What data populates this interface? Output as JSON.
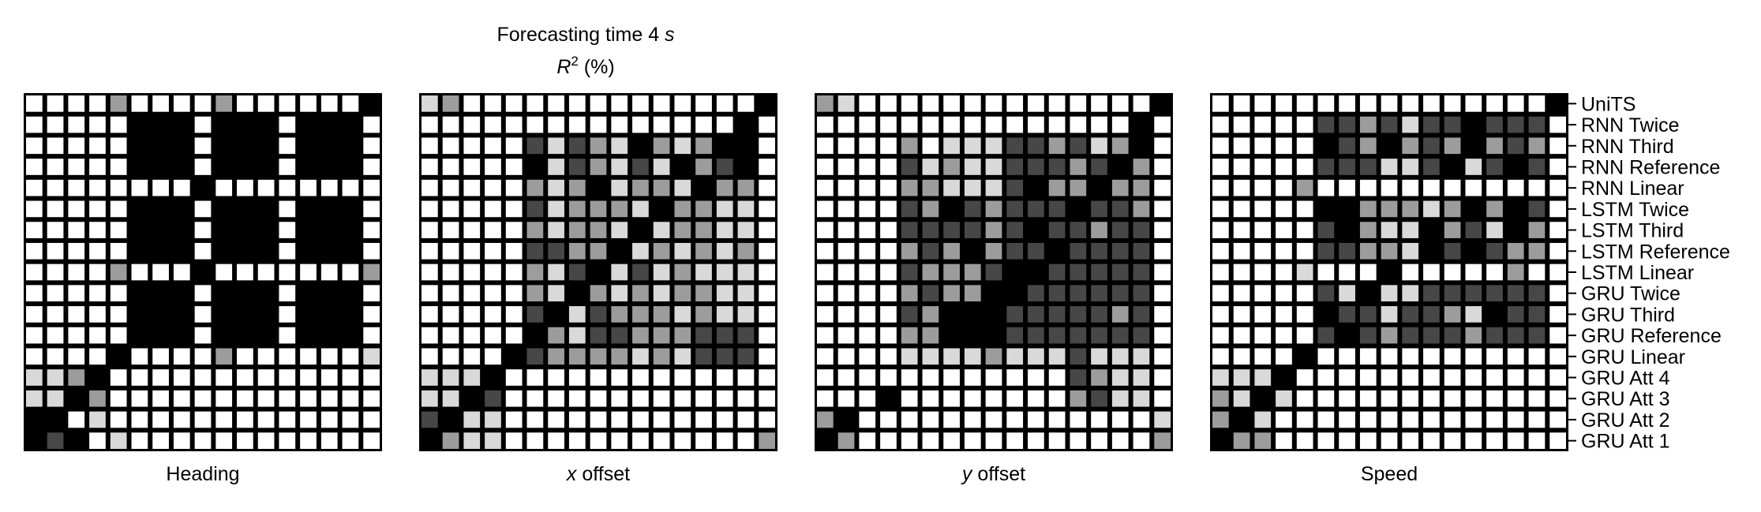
{
  "figure": {
    "title_line1_prefix": "Forecasting time 4 ",
    "title_line1_var": "s",
    "title_line2_var": "R",
    "title_line2_sup": "2",
    "title_line2_suffix": " (%)"
  },
  "row_labels": [
    "UniTS",
    "RNN Twice",
    "RNN Third",
    "RNN Reference",
    "RNN Linear",
    "LSTM Twice",
    "LSTM Third",
    "LSTM Reference",
    "LSTM Linear",
    "GRU Twice",
    "GRU Third",
    "GRU Reference",
    "GRU Linear",
    "GRU Att 4",
    "GRU Att 3",
    "GRU Att 2",
    "GRU Att 1"
  ],
  "chart_data": [
    {
      "type": "heatmap",
      "xlabel_prefix": "",
      "xlabel_var": "",
      "xlabel_suffix": "Heading",
      "note": "17x17 pairwise matrix, rows top-to-bottom and columns left-to-right in row_labels order; values are darkness level 0 (white) to 4 (black)",
      "matrix": [
        [
          0,
          0,
          0,
          0,
          2,
          0,
          0,
          0,
          0,
          2,
          0,
          0,
          0,
          0,
          0,
          0,
          4
        ],
        [
          0,
          0,
          0,
          0,
          0,
          4,
          4,
          4,
          0,
          4,
          4,
          4,
          0,
          4,
          4,
          4,
          0
        ],
        [
          0,
          0,
          0,
          0,
          0,
          4,
          4,
          4,
          0,
          4,
          4,
          4,
          0,
          4,
          4,
          4,
          0
        ],
        [
          0,
          0,
          0,
          0,
          0,
          4,
          4,
          4,
          0,
          4,
          4,
          4,
          0,
          4,
          4,
          4,
          0
        ],
        [
          0,
          0,
          0,
          0,
          0,
          0,
          0,
          0,
          4,
          0,
          0,
          0,
          0,
          0,
          0,
          0,
          0
        ],
        [
          0,
          0,
          0,
          0,
          0,
          4,
          4,
          4,
          0,
          4,
          4,
          4,
          0,
          4,
          4,
          4,
          0
        ],
        [
          0,
          0,
          0,
          0,
          0,
          4,
          4,
          4,
          0,
          4,
          4,
          4,
          0,
          4,
          4,
          4,
          0
        ],
        [
          0,
          0,
          0,
          0,
          0,
          4,
          4,
          4,
          0,
          4,
          4,
          4,
          0,
          4,
          4,
          4,
          0
        ],
        [
          0,
          0,
          0,
          0,
          2,
          0,
          0,
          0,
          4,
          0,
          0,
          0,
          0,
          0,
          0,
          0,
          2
        ],
        [
          0,
          0,
          0,
          0,
          0,
          4,
          4,
          4,
          0,
          4,
          4,
          4,
          0,
          4,
          4,
          4,
          0
        ],
        [
          0,
          0,
          0,
          0,
          0,
          4,
          4,
          4,
          0,
          4,
          4,
          4,
          0,
          4,
          4,
          4,
          0
        ],
        [
          0,
          0,
          0,
          0,
          0,
          4,
          4,
          4,
          0,
          4,
          4,
          4,
          0,
          4,
          4,
          4,
          0
        ],
        [
          0,
          0,
          0,
          0,
          4,
          0,
          0,
          0,
          0,
          2,
          0,
          0,
          0,
          0,
          0,
          0,
          1
        ],
        [
          1,
          1,
          2,
          4,
          0,
          0,
          0,
          0,
          0,
          0,
          0,
          0,
          0,
          0,
          0,
          0,
          0
        ],
        [
          1,
          1,
          4,
          2,
          0,
          0,
          0,
          0,
          0,
          0,
          0,
          0,
          0,
          0,
          0,
          0,
          0
        ],
        [
          4,
          4,
          0,
          1,
          0,
          0,
          0,
          0,
          0,
          0,
          0,
          0,
          0,
          0,
          0,
          0,
          0
        ],
        [
          4,
          3,
          4,
          0,
          1,
          0,
          0,
          0,
          0,
          0,
          0,
          0,
          0,
          0,
          0,
          0,
          0
        ]
      ]
    },
    {
      "type": "heatmap",
      "xlabel_prefix": "",
      "xlabel_var": "x",
      "xlabel_suffix": " offset",
      "matrix": [
        [
          1,
          2,
          0,
          0,
          0,
          0,
          0,
          0,
          0,
          0,
          0,
          0,
          0,
          0,
          0,
          0,
          4
        ],
        [
          0,
          0,
          0,
          0,
          0,
          0,
          0,
          0,
          0,
          0,
          0,
          0,
          0,
          0,
          0,
          4,
          0
        ],
        [
          0,
          0,
          0,
          0,
          0,
          3,
          1,
          3,
          2,
          1,
          4,
          2,
          1,
          2,
          4,
          4,
          0
        ],
        [
          0,
          0,
          0,
          0,
          0,
          4,
          1,
          3,
          2,
          1,
          3,
          1,
          4,
          2,
          3,
          4,
          0
        ],
        [
          0,
          0,
          0,
          0,
          0,
          2,
          1,
          2,
          4,
          1,
          2,
          2,
          1,
          4,
          2,
          2,
          0
        ],
        [
          0,
          0,
          0,
          0,
          0,
          3,
          1,
          2,
          2,
          2,
          1,
          4,
          2,
          2,
          1,
          1,
          0
        ],
        [
          0,
          0,
          0,
          0,
          0,
          2,
          1,
          2,
          2,
          1,
          4,
          1,
          2,
          2,
          1,
          1,
          0
        ],
        [
          0,
          0,
          0,
          0,
          0,
          3,
          3,
          2,
          2,
          4,
          1,
          2,
          1,
          2,
          1,
          2,
          0
        ],
        [
          0,
          0,
          0,
          0,
          0,
          2,
          1,
          3,
          4,
          1,
          3,
          1,
          2,
          1,
          1,
          1,
          0
        ],
        [
          0,
          0,
          0,
          0,
          0,
          2,
          1,
          4,
          2,
          1,
          2,
          1,
          2,
          2,
          1,
          1,
          0
        ],
        [
          0,
          0,
          0,
          0,
          0,
          3,
          4,
          1,
          3,
          2,
          2,
          2,
          1,
          2,
          1,
          1,
          0
        ],
        [
          0,
          0,
          0,
          0,
          0,
          4,
          2,
          1,
          3,
          3,
          2,
          2,
          2,
          3,
          3,
          3,
          0
        ],
        [
          0,
          0,
          0,
          0,
          4,
          3,
          2,
          2,
          2,
          2,
          1,
          2,
          1,
          3,
          3,
          3,
          0
        ],
        [
          1,
          1,
          1,
          4,
          0,
          0,
          0,
          0,
          0,
          0,
          0,
          0,
          0,
          0,
          0,
          0,
          0
        ],
        [
          1,
          1,
          4,
          3,
          0,
          0,
          0,
          0,
          0,
          0,
          0,
          0,
          0,
          0,
          0,
          0,
          0
        ],
        [
          3,
          4,
          1,
          1,
          0,
          0,
          0,
          0,
          0,
          0,
          0,
          0,
          0,
          0,
          0,
          0,
          0
        ],
        [
          4,
          2,
          1,
          1,
          0,
          0,
          0,
          0,
          0,
          0,
          0,
          0,
          0,
          0,
          0,
          0,
          2
        ]
      ]
    },
    {
      "type": "heatmap",
      "xlabel_prefix": "",
      "xlabel_var": "y",
      "xlabel_suffix": " offset",
      "matrix": [
        [
          2,
          1,
          0,
          0,
          0,
          0,
          0,
          0,
          0,
          0,
          0,
          0,
          0,
          0,
          0,
          0,
          4
        ],
        [
          0,
          0,
          0,
          0,
          0,
          0,
          0,
          0,
          0,
          0,
          0,
          0,
          0,
          0,
          0,
          4,
          0
        ],
        [
          0,
          0,
          0,
          0,
          2,
          0,
          1,
          1,
          1,
          3,
          3,
          2,
          3,
          1,
          2,
          4,
          0
        ],
        [
          0,
          0,
          0,
          0,
          3,
          1,
          2,
          1,
          1,
          3,
          3,
          3,
          2,
          3,
          4,
          2,
          0
        ],
        [
          0,
          0,
          0,
          0,
          2,
          2,
          1,
          1,
          1,
          3,
          4,
          2,
          2,
          4,
          2,
          2,
          0
        ],
        [
          0,
          0,
          0,
          0,
          3,
          2,
          4,
          3,
          2,
          3,
          3,
          3,
          4,
          3,
          3,
          2,
          0
        ],
        [
          0,
          0,
          0,
          0,
          3,
          3,
          3,
          3,
          2,
          3,
          4,
          3,
          3,
          2,
          3,
          3,
          0
        ],
        [
          0,
          0,
          0,
          0,
          2,
          3,
          2,
          4,
          2,
          3,
          3,
          4,
          3,
          3,
          3,
          3,
          0
        ],
        [
          0,
          0,
          0,
          0,
          3,
          2,
          2,
          2,
          3,
          4,
          4,
          3,
          3,
          3,
          3,
          3,
          0
        ],
        [
          0,
          0,
          0,
          0,
          2,
          3,
          2,
          2,
          4,
          4,
          3,
          3,
          3,
          3,
          3,
          3,
          0
        ],
        [
          0,
          0,
          0,
          0,
          3,
          2,
          4,
          4,
          4,
          3,
          3,
          3,
          3,
          3,
          2,
          3,
          0
        ],
        [
          0,
          0,
          0,
          0,
          2,
          2,
          4,
          4,
          4,
          3,
          3,
          3,
          3,
          3,
          3,
          3,
          0
        ],
        [
          0,
          0,
          0,
          0,
          1,
          1,
          1,
          1,
          2,
          1,
          1,
          1,
          3,
          1,
          1,
          1,
          0
        ],
        [
          0,
          0,
          0,
          0,
          0,
          0,
          0,
          0,
          0,
          0,
          0,
          0,
          3,
          2,
          1,
          1,
          0
        ],
        [
          0,
          0,
          0,
          4,
          0,
          0,
          0,
          0,
          0,
          0,
          0,
          0,
          2,
          3,
          1,
          1,
          0
        ],
        [
          2,
          4,
          0,
          0,
          0,
          0,
          0,
          0,
          0,
          0,
          0,
          0,
          0,
          0,
          0,
          0,
          1
        ],
        [
          4,
          2,
          0,
          0,
          0,
          0,
          0,
          0,
          0,
          0,
          0,
          0,
          0,
          0,
          0,
          0,
          2
        ]
      ]
    },
    {
      "type": "heatmap",
      "xlabel_prefix": "",
      "xlabel_var": "",
      "xlabel_suffix": "Speed",
      "matrix": [
        [
          0,
          0,
          0,
          0,
          0,
          0,
          0,
          0,
          0,
          0,
          0,
          0,
          0,
          0,
          0,
          0,
          4
        ],
        [
          0,
          0,
          0,
          0,
          0,
          3,
          3,
          2,
          3,
          1,
          3,
          3,
          4,
          3,
          3,
          3,
          0
        ],
        [
          0,
          0,
          0,
          0,
          0,
          4,
          3,
          2,
          4,
          2,
          3,
          2,
          4,
          2,
          3,
          2,
          0
        ],
        [
          0,
          0,
          0,
          0,
          0,
          3,
          3,
          3,
          1,
          1,
          3,
          4,
          1,
          3,
          4,
          3,
          0
        ],
        [
          0,
          0,
          0,
          0,
          2,
          0,
          0,
          0,
          0,
          0,
          0,
          0,
          0,
          0,
          0,
          0,
          0
        ],
        [
          0,
          0,
          0,
          0,
          0,
          4,
          4,
          2,
          2,
          2,
          1,
          2,
          4,
          2,
          4,
          3,
          0
        ],
        [
          0,
          0,
          0,
          0,
          0,
          3,
          4,
          2,
          1,
          1,
          4,
          2,
          3,
          1,
          4,
          2,
          0
        ],
        [
          0,
          0,
          0,
          0,
          0,
          3,
          3,
          2,
          2,
          1,
          4,
          3,
          4,
          3,
          2,
          2,
          0
        ],
        [
          0,
          0,
          0,
          0,
          1,
          0,
          0,
          0,
          4,
          0,
          0,
          0,
          0,
          0,
          2,
          0,
          0
        ],
        [
          0,
          0,
          0,
          0,
          0,
          3,
          1,
          4,
          1,
          1,
          3,
          3,
          3,
          3,
          3,
          3,
          0
        ],
        [
          0,
          0,
          0,
          0,
          0,
          4,
          3,
          3,
          1,
          3,
          3,
          2,
          1,
          4,
          3,
          3,
          0
        ],
        [
          0,
          0,
          0,
          0,
          0,
          3,
          4,
          3,
          2,
          3,
          3,
          3,
          2,
          3,
          3,
          3,
          0
        ],
        [
          0,
          0,
          0,
          0,
          4,
          0,
          0,
          0,
          0,
          0,
          0,
          0,
          0,
          0,
          0,
          0,
          0
        ],
        [
          1,
          1,
          1,
          4,
          0,
          0,
          0,
          0,
          0,
          0,
          0,
          0,
          0,
          0,
          0,
          0,
          0
        ],
        [
          2,
          1,
          4,
          1,
          0,
          0,
          0,
          0,
          0,
          0,
          0,
          0,
          0,
          0,
          0,
          0,
          0
        ],
        [
          2,
          4,
          1,
          0,
          0,
          0,
          0,
          0,
          0,
          0,
          0,
          0,
          0,
          0,
          0,
          0,
          0
        ],
        [
          4,
          2,
          2,
          0,
          0,
          0,
          0,
          0,
          0,
          0,
          0,
          0,
          0,
          0,
          0,
          0,
          0
        ]
      ]
    }
  ]
}
